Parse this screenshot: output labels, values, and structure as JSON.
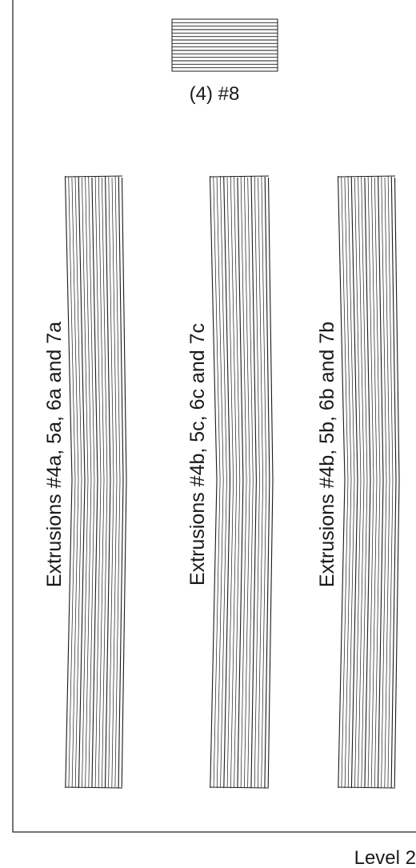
{
  "sheet": {
    "level_label": "Level 2"
  },
  "stack_top": {
    "label": "(4) #8"
  },
  "bundles": [
    {
      "label": "Extrusions #4a, 5a, 6a and 7a"
    },
    {
      "label": "Extrusions #4b, 5c, 6c and 7c"
    },
    {
      "label": "Extrusions #4b, 5b, 6b and 7b"
    }
  ]
}
